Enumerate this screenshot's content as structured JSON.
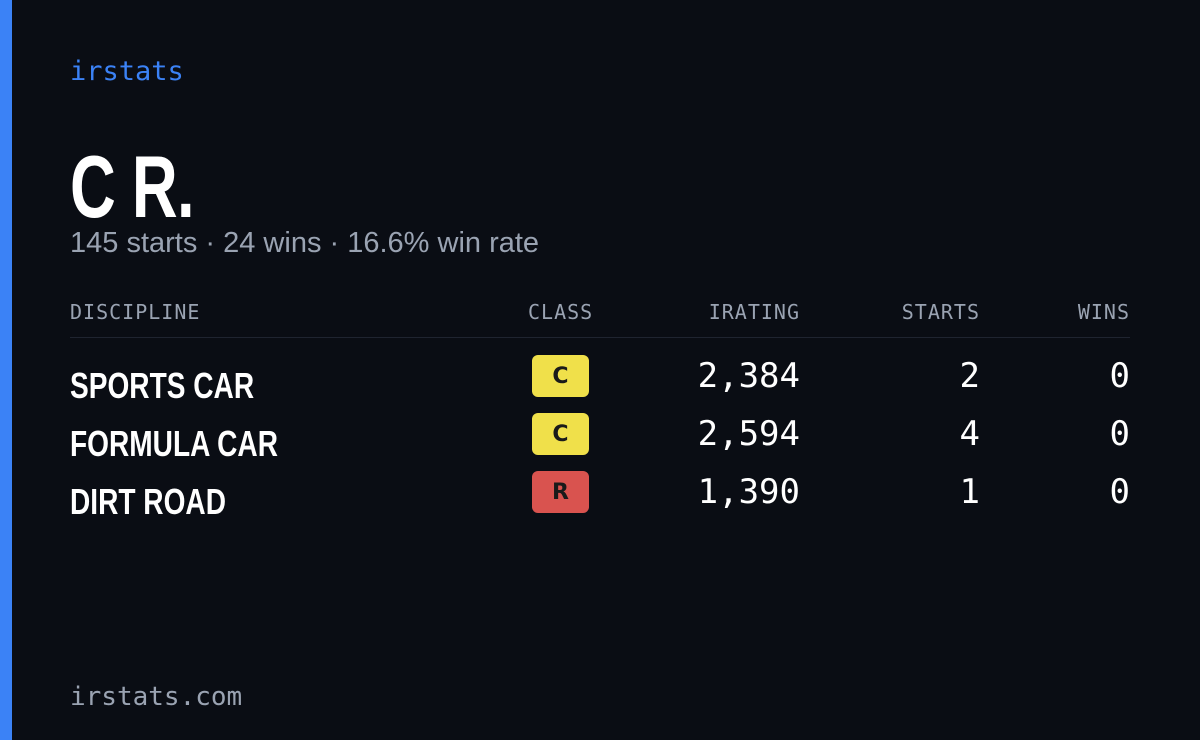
{
  "header": {
    "brand": "irstats",
    "name": "C R.",
    "summary": "145 starts · 24 wins · 16.6% win rate"
  },
  "table": {
    "columns": [
      "DISCIPLINE",
      "CLASS",
      "IRATING",
      "STARTS",
      "WINS"
    ],
    "rows": [
      {
        "discipline": "SPORTS CAR",
        "class": "C",
        "class_color": "#f0e04a",
        "irating": "2,384",
        "starts": 2,
        "wins": 0
      },
      {
        "discipline": "FORMULA CAR",
        "class": "C",
        "class_color": "#f0e04a",
        "irating": "2,594",
        "starts": 4,
        "wins": 0
      },
      {
        "discipline": "DIRT ROAD",
        "class": "R",
        "class_color": "#d9534f",
        "irating": "1,390",
        "starts": 1,
        "wins": 0
      }
    ]
  },
  "footer": {
    "site": "irstats.com"
  }
}
